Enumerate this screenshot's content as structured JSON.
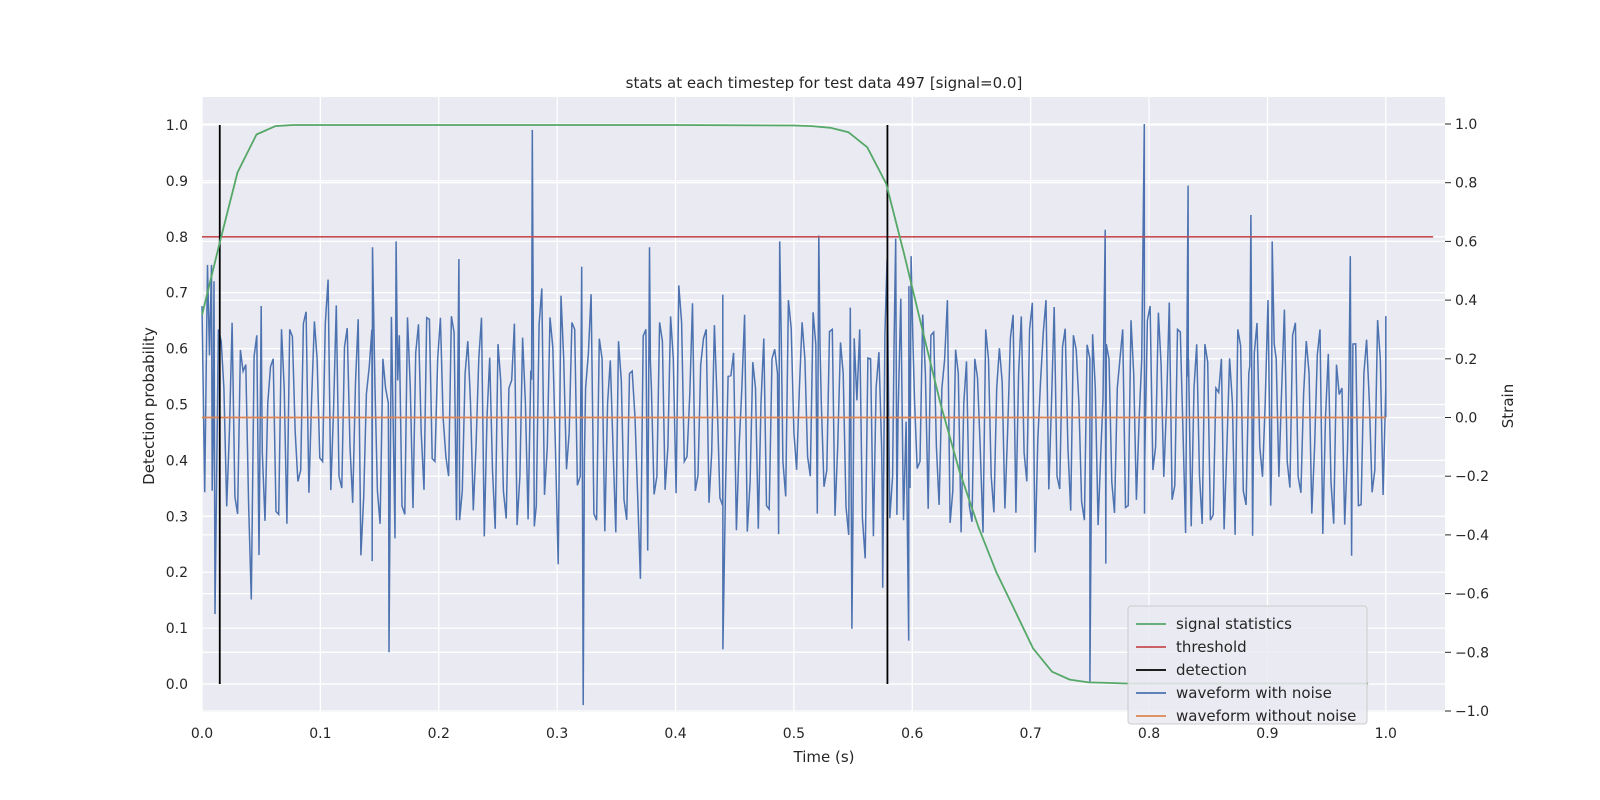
{
  "chart_data": {
    "type": "line",
    "title": "stats at each timestep for test data 497 [signal=0.0]",
    "xlabel": "Time (s)",
    "ylabel_left": "Detection probability",
    "ylabel_right": "Strain",
    "xlim": [
      0.0,
      1.05
    ],
    "ylim_left": [
      -0.05,
      1.05
    ],
    "ylim_right": [
      -1.0,
      1.0
    ],
    "xticks": [
      "0.0",
      "0.1",
      "0.2",
      "0.3",
      "0.4",
      "0.5",
      "0.6",
      "0.7",
      "0.8",
      "0.9",
      "1.0"
    ],
    "yticks_left": [
      "0.0",
      "0.1",
      "0.2",
      "0.3",
      "0.4",
      "0.5",
      "0.6",
      "0.7",
      "0.8",
      "0.9",
      "1.0"
    ],
    "yticks_right": [
      "1.0",
      "0.8",
      "0.6",
      "0.4",
      "0.2",
      "0.0",
      "−0.2",
      "−0.4",
      "−0.6",
      "−0.8",
      "−1.0"
    ],
    "yticks_right_values": [
      1.0,
      0.8,
      0.6,
      0.4,
      0.2,
      0.0,
      -0.2,
      -0.4,
      -0.6,
      -0.8,
      -1.0
    ],
    "grid": true,
    "legend_position": "lower-right",
    "colors": {
      "signal_statistics": "#55a868",
      "threshold": "#c44e52",
      "detection": "#000000",
      "waveform_with_noise": "#4c72b0",
      "waveform_without_noise": "#dd8452",
      "axes_background": "#eaeaf2",
      "grid": "#ffffff"
    },
    "series": [
      {
        "name": "signal statistics",
        "axis": "left",
        "x": [
          0.0,
          0.015,
          0.03,
          0.046,
          0.062,
          0.077,
          0.1,
          0.2,
          0.3,
          0.4,
          0.5,
          0.515,
          0.531,
          0.546,
          0.562,
          0.578,
          0.593,
          0.609,
          0.624,
          0.64,
          0.656,
          0.671,
          0.687,
          0.702,
          0.718,
          0.733,
          0.749,
          0.765,
          0.78,
          0.8,
          0.9,
          0.985
        ],
        "y": [
          0.66,
          0.79,
          0.915,
          0.983,
          0.998,
          1.0,
          1.0,
          1.0,
          1.0,
          1.0,
          0.999,
          0.998,
          0.995,
          0.987,
          0.96,
          0.895,
          0.77,
          0.63,
          0.5,
          0.38,
          0.28,
          0.2,
          0.13,
          0.064,
          0.022,
          0.008,
          0.003,
          0.002,
          0.001,
          0.001,
          0.001,
          0.001
        ]
      },
      {
        "name": "threshold",
        "axis": "left",
        "x": [
          0.0,
          1.04
        ],
        "y": [
          0.8,
          0.8
        ]
      },
      {
        "name": "detection",
        "axis": "left",
        "segments": [
          {
            "x": 0.015,
            "y": [
              0.0,
              1.0
            ]
          },
          {
            "x": 0.579,
            "y": [
              0.0,
              1.0
            ]
          }
        ]
      },
      {
        "name": "waveform with noise",
        "axis": "right",
        "x_range": [
          0.0,
          1.0
        ],
        "samples": [
          0.38,
          0.52,
          -0.08,
          0.3,
          0.1,
          -0.05,
          -0.27,
          0.23,
          0.18,
          -0.62,
          0.28,
          -0.12,
          0.05,
          0.2,
          -0.33,
          0.1,
          0.3,
          -0.05,
          -0.18,
          0.36,
          0.06,
          0.2,
          -0.15,
          0.47,
          0.02,
          -0.2,
          0.24,
          -0.1,
          0.12,
          -0.47,
          0.08,
          0.3,
          -0.25,
          0.2,
          0.05,
          -0.15,
          0.28,
          -0.33,
          0.1,
          0.22,
          -0.05,
          0.34,
          -0.14,
          0.2,
          0.0,
          -0.2,
          0.29,
          -0.35,
          0.15,
          0.05,
          -0.1,
          0.34,
          0.0,
          -0.18,
          0.25,
          -0.25,
          0.1,
          0.32,
          -0.2,
          0.05,
          0.16,
          -0.3,
          0.44,
          -0.1,
          0.24,
          -0.5,
          0.2,
          -0.05,
          0.3,
          -0.2,
          0.1,
          0.42,
          -0.35,
          0.2,
          0.05,
          -0.1,
          0.26,
          -0.28,
          0.15,
          0.0,
          -0.55,
          0.3,
          0.1,
          -0.2,
          0.26,
          -0.1,
          0.2,
          0.45,
          -0.15,
          0.08,
          -0.25,
          0.18,
          0.3,
          -0.12,
          0.05,
          -0.3,
          0.14,
          0.22,
          -0.1,
          0.35,
          -0.22,
          0.1,
          0.05,
          -0.3,
          0.2,
          0.15,
          -0.15,
          0.4,
          -0.05,
          0.1,
          0.2,
          -0.2,
          0.25,
          0.05,
          -0.18,
          0.3,
          -0.1,
          0.15,
          -0.4,
          0.27,
          0.3,
          -0.48,
          0.2,
          0.1,
          -0.1,
          0.54,
          -0.2,
          0.0,
          -0.35,
          0.23,
          0.06,
          -0.15,
          0.15,
          0.28,
          -0.1,
          0.1,
          0.4,
          -0.25,
          0.15,
          0.05,
          -0.3,
          0.2,
          -0.1,
          0.3,
          -0.2,
          0.1,
          0.12,
          -0.05,
          0.35,
          0.15,
          -0.12,
          0.3,
          -0.46,
          0.12,
          0.4,
          0.05,
          -0.2,
          0.24,
          -0.1,
          0.28,
          0.05,
          -0.35,
          0.2,
          0.1,
          -0.12,
          0.25,
          -0.22,
          0.1,
          0.3,
          -0.3,
          0.15,
          0.0,
          -0.15,
          0.38,
          -0.1,
          0.18,
          0.05,
          -0.28,
          0.3,
          -0.05,
          0.2,
          0.1,
          -0.2,
          0.25,
          -0.35,
          0.1,
          0.2,
          -0.1,
          0.05,
          0.3,
          -0.25,
          0.15,
          0.22,
          -0.1,
          0.05,
          -0.3,
          0.2,
          0.1,
          -0.15,
          0.28,
          -0.2,
          0.08,
          0.15,
          -0.1,
          0.3,
          0.0,
          -0.22,
          0.18,
          0.1,
          -0.12,
          0.25,
          -0.3,
          0.15,
          0.05,
          -0.18,
          0.2,
          0.1
        ],
        "highlights": [
          {
            "x": 0.008,
            "y": 0.52
          },
          {
            "x": 0.011,
            "y": -0.67
          },
          {
            "x": 0.05,
            "y": 0.38
          },
          {
            "x": 0.158,
            "y": -0.8
          },
          {
            "x": 0.144,
            "y": 0.58
          },
          {
            "x": 0.164,
            "y": 0.6
          },
          {
            "x": 0.217,
            "y": 0.54
          },
          {
            "x": 0.279,
            "y": 0.98
          },
          {
            "x": 0.322,
            "y": -0.98
          },
          {
            "x": 0.378,
            "y": 0.58
          },
          {
            "x": 0.44,
            "y": -0.79
          },
          {
            "x": 0.488,
            "y": 0.6
          },
          {
            "x": 0.521,
            "y": 0.62
          },
          {
            "x": 0.549,
            "y": -0.72
          },
          {
            "x": 0.575,
            "y": -0.58
          },
          {
            "x": 0.586,
            "y": 0.61
          },
          {
            "x": 0.599,
            "y": 0.55
          },
          {
            "x": 0.597,
            "y": -0.76
          },
          {
            "x": 0.75,
            "y": -0.9
          },
          {
            "x": 0.763,
            "y": 0.64
          },
          {
            "x": 0.796,
            "y": 1.0
          },
          {
            "x": 0.833,
            "y": 0.79
          },
          {
            "x": 0.886,
            "y": 0.69
          },
          {
            "x": 0.904,
            "y": 0.6
          },
          {
            "x": 0.97,
            "y": 0.55
          },
          {
            "x": 1.0,
            "y": 0.0
          }
        ]
      },
      {
        "name": "waveform without noise",
        "axis": "right",
        "x": [
          0.0,
          1.0
        ],
        "y": [
          0.0,
          0.0
        ]
      }
    ],
    "legend": [
      "signal statistics",
      "threshold",
      "detection",
      "waveform with noise",
      "waveform without noise"
    ]
  }
}
